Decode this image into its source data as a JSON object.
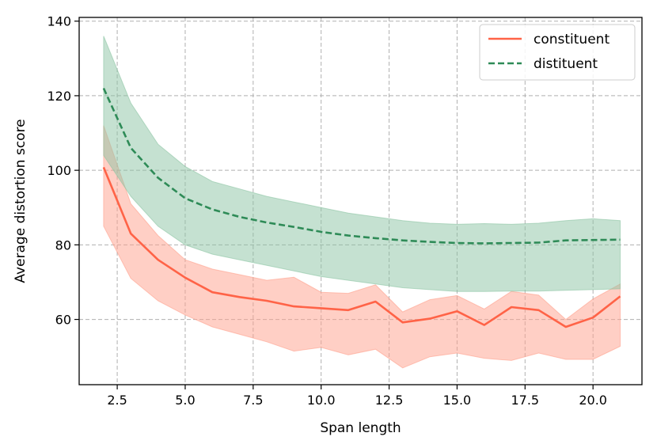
{
  "chart_data": {
    "type": "line",
    "title": "",
    "xlabel": "Span length",
    "ylabel": "Average distortion score",
    "xlim": [
      1.1,
      21.8
    ],
    "ylim": [
      42.5,
      141
    ],
    "xticks": [
      2.5,
      5.0,
      7.5,
      10.0,
      12.5,
      15.0,
      17.5,
      20.0
    ],
    "xtick_labels": [
      "2.5",
      "5.0",
      "7.5",
      "10.0",
      "12.5",
      "15.0",
      "17.5",
      "20.0"
    ],
    "yticks": [
      60,
      80,
      100,
      120,
      140
    ],
    "ytick_labels": [
      "60",
      "80",
      "100",
      "120",
      "140"
    ],
    "grid": true,
    "legend_position": "top-right",
    "x": [
      2,
      3,
      4,
      5,
      6,
      7,
      8,
      9,
      10,
      11,
      12,
      13,
      14,
      15,
      16,
      17,
      18,
      19,
      20,
      21
    ],
    "series": [
      {
        "name": "constituent",
        "color": "#ff6347",
        "band_color": "#ffa08c",
        "linestyle": "solid",
        "values": [
          100.8,
          83.0,
          76.0,
          71.2,
          67.3,
          66.0,
          65.0,
          63.5,
          63.0,
          62.5,
          64.8,
          59.2,
          60.2,
          62.2,
          58.5,
          63.3,
          62.5,
          58.0,
          60.5,
          66.2
        ],
        "upper": [
          112.0,
          91.0,
          82.5,
          76.0,
          73.5,
          72.0,
          70.5,
          71.3,
          67.3,
          67.0,
          69.3,
          62.0,
          65.3,
          66.4,
          62.8,
          67.5,
          66.5,
          60.0,
          65.5,
          69.5
        ],
        "lower": [
          85.0,
          71.0,
          65.0,
          61.2,
          58.0,
          56.0,
          54.0,
          51.5,
          52.5,
          50.5,
          52.0,
          47.0,
          50.0,
          51.0,
          49.6,
          49.0,
          51.0,
          49.3,
          49.3,
          52.8
        ]
      },
      {
        "name": "distituent",
        "color": "#2e8b57",
        "band_color": "#8cc4a3",
        "linestyle": "dashed",
        "values": [
          122.0,
          106.0,
          98.0,
          92.5,
          89.5,
          87.5,
          86.0,
          84.8,
          83.5,
          82.5,
          81.8,
          81.2,
          80.8,
          80.5,
          80.4,
          80.5,
          80.6,
          81.2,
          81.3,
          81.4
        ],
        "upper": [
          136.0,
          118.0,
          107.0,
          101.0,
          97.0,
          95.0,
          93.0,
          91.5,
          90.0,
          88.5,
          87.5,
          86.5,
          85.8,
          85.5,
          85.7,
          85.5,
          85.8,
          86.5,
          87.0,
          86.5
        ],
        "lower": [
          104.0,
          93.0,
          85.0,
          80.0,
          77.5,
          76.0,
          74.5,
          73.0,
          71.5,
          70.5,
          69.5,
          68.5,
          68.0,
          67.5,
          67.5,
          67.6,
          67.6,
          67.8,
          68.0,
          68.2
        ]
      }
    ]
  }
}
